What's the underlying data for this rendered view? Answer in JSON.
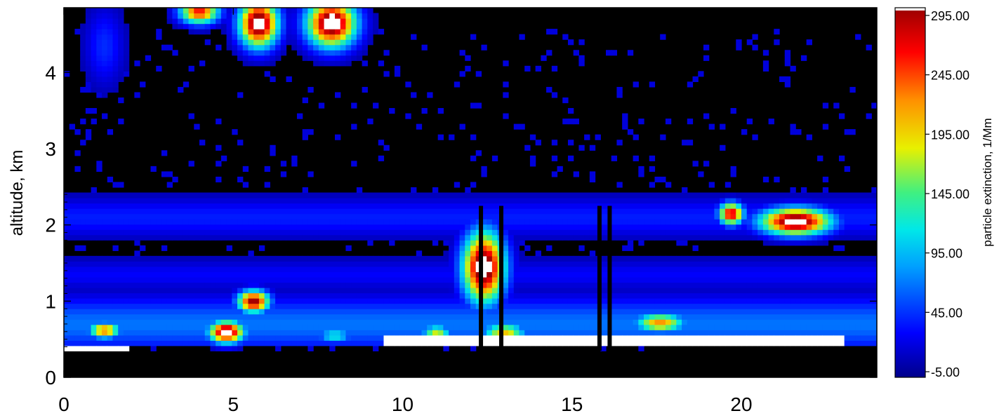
{
  "chart_data": {
    "type": "heatmap",
    "title": "",
    "xlabel": "",
    "ylabel": "altitude,  km",
    "xlim": [
      0,
      24
    ],
    "ylim": [
      0,
      4.85
    ],
    "x_ticks": [
      0,
      5,
      10,
      15,
      20
    ],
    "x_tick_labels": [
      "0",
      "5",
      "10",
      "15",
      "20"
    ],
    "y_ticks": [
      0,
      1,
      2,
      3,
      4
    ],
    "y_tick_labels": [
      "0",
      "1",
      "2",
      "3",
      "4"
    ],
    "colorbar": {
      "label": "particle  extinction,  1/Mm",
      "min": -5,
      "max": 295,
      "ticks": [
        -5,
        45,
        95,
        145,
        195,
        245,
        295
      ],
      "tick_labels": [
        "-5.00",
        "45.00",
        "95.00",
        "145.00",
        "195.00",
        "245.00",
        "295.00"
      ],
      "colormap": "rainbow (dark blue to dark red)",
      "saturation_color": "#ffffff"
    },
    "background_value": "#000000",
    "features": [
      {
        "x": [
          0,
          24
        ],
        "y": [
          0,
          0.35
        ],
        "value": "no data (black)"
      },
      {
        "x": [
          0.6,
          1.8
        ],
        "y": [
          0.5,
          0.75
        ],
        "value": 230
      },
      {
        "x": [
          4.3,
          5.2
        ],
        "y": [
          0.45,
          0.8
        ],
        "value": 300
      },
      {
        "x": [
          5.1,
          6.1
        ],
        "y": [
          0.85,
          1.15
        ],
        "value": 280
      },
      {
        "x": [
          11.6,
          13.2
        ],
        "y": [
          1.0,
          1.9
        ],
        "value": 300
      },
      {
        "x": [
          19.3,
          20.1
        ],
        "y": [
          1.95,
          2.3
        ],
        "value": 270
      },
      {
        "x": [
          20.6,
          22.7
        ],
        "y": [
          1.9,
          2.3
        ],
        "value": 300
      },
      {
        "x": [
          5.2,
          6.3
        ],
        "y": [
          4.3,
          4.85
        ],
        "value": 300
      },
      {
        "x": [
          7.2,
          8.6
        ],
        "y": [
          4.3,
          4.85
        ],
        "value": 300
      },
      {
        "x": [
          3.5,
          4.6
        ],
        "y": [
          4.6,
          4.85
        ],
        "value": 260
      },
      {
        "x": [
          0.6,
          1.8
        ],
        "y": [
          3.85,
          4.85
        ],
        "value": 40
      },
      {
        "x": [
          0,
          24
        ],
        "y": [
          0.4,
          1.3
        ],
        "value": 60
      },
      {
        "x": [
          0,
          24
        ],
        "y": [
          1.6,
          2.45
        ],
        "value": 30
      }
    ]
  }
}
